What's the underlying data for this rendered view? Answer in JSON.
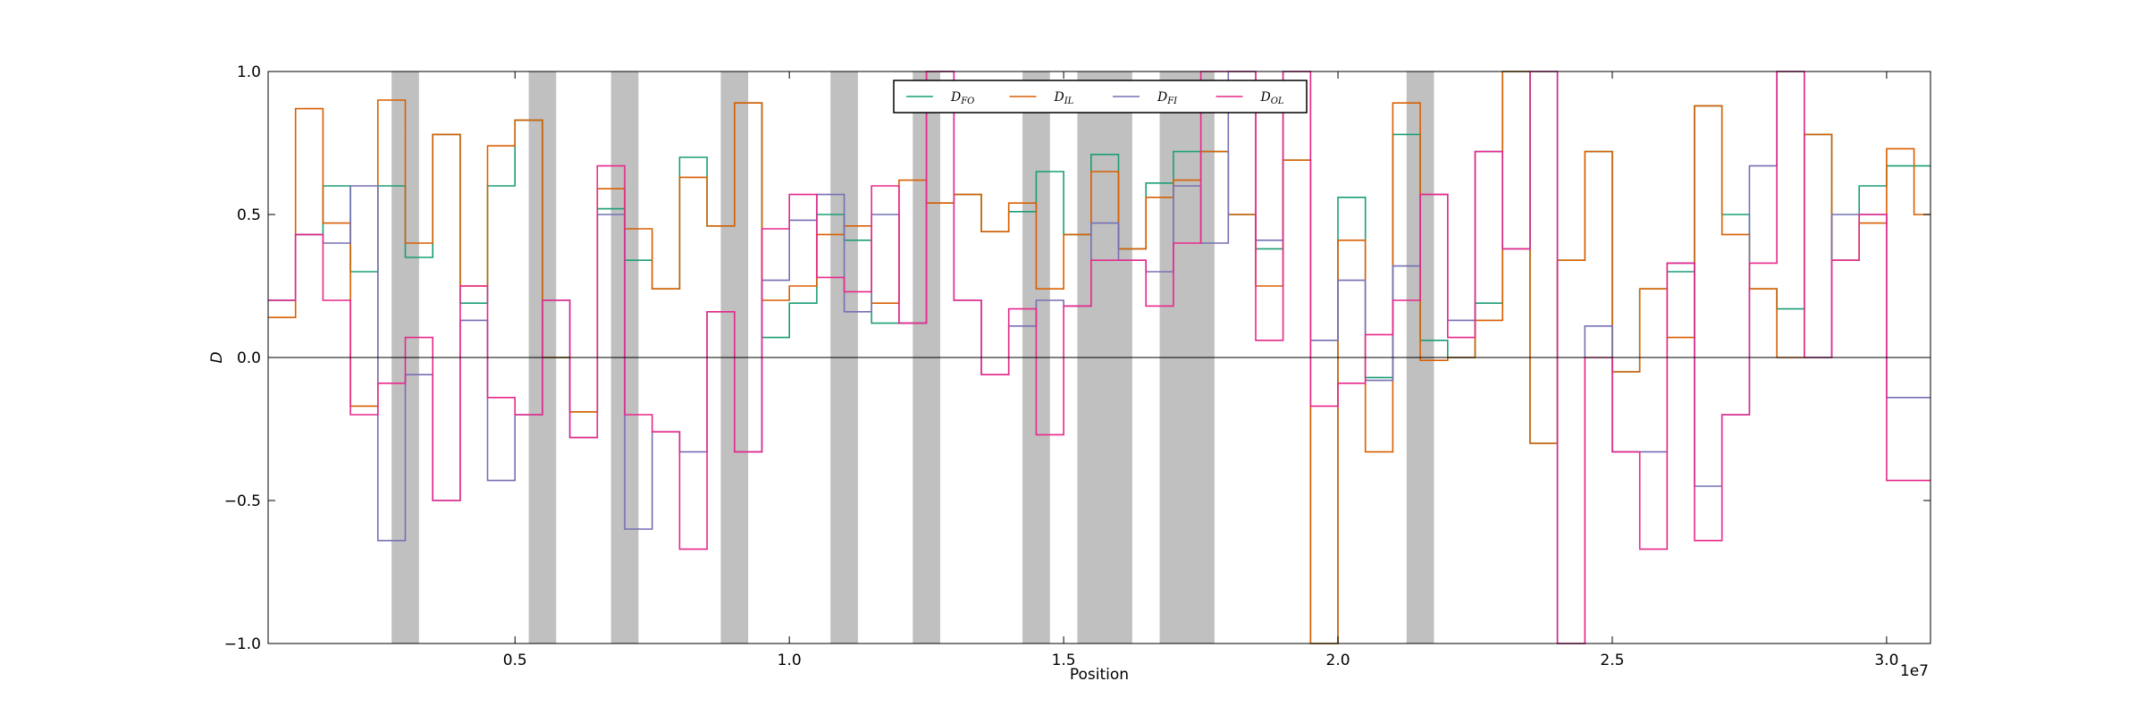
{
  "chart_data": {
    "type": "line",
    "step": true,
    "xlabel": "Position",
    "ylabel": "D",
    "x_offset_label": "1e7",
    "xlim": [
      500000,
      30800000
    ],
    "ylim": [
      -1.0,
      1.0
    ],
    "x_ticks": [
      5000000,
      10000000,
      15000000,
      20000000,
      25000000,
      30000000
    ],
    "x_tick_labels": [
      "0.5",
      "1.0",
      "1.5",
      "2.0",
      "2.5",
      "3.0"
    ],
    "y_ticks": [
      1.0,
      0.5,
      0.0,
      -0.5,
      -1.0
    ],
    "y_tick_labels": [
      "1.0",
      "0.5",
      "0.0",
      "−0.5",
      "−1.0"
    ],
    "zero_line": true,
    "grid": false,
    "legend_position": "top-center",
    "shaded_regions": [
      [
        2750000,
        3250000
      ],
      [
        5250000,
        5750000
      ],
      [
        6750000,
        7250000
      ],
      [
        8750000,
        9250000
      ],
      [
        10750000,
        11250000
      ],
      [
        12250000,
        12750000
      ],
      [
        14250000,
        14750000
      ],
      [
        15250000,
        16250000
      ],
      [
        16750000,
        17750000
      ],
      [
        21250000,
        21750000
      ]
    ],
    "shade_color": "#c0c0c0",
    "bin_edges": [
      500000,
      1000000,
      1500000,
      2000000,
      2500000,
      3000000,
      3500000,
      4000000,
      4500000,
      5000000,
      5500000,
      6000000,
      6500000,
      7000000,
      7500000,
      8000000,
      8500000,
      9000000,
      9500000,
      10000000,
      10500000,
      11000000,
      11500000,
      12000000,
      12500000,
      13000000,
      13500000,
      14000000,
      14500000,
      15000000,
      15500000,
      16000000,
      16500000,
      17000000,
      17500000,
      18000000,
      18500000,
      19000000,
      19500000,
      20000000,
      20500000,
      21000000,
      21500000,
      22000000,
      22500000,
      23000000,
      23500000,
      24000000,
      24500000,
      25000000,
      25500000,
      26000000,
      26500000,
      27000000,
      27500000,
      28000000,
      28500000,
      29000000,
      29500000,
      30000000,
      30500000,
      30800000
    ],
    "series": [
      {
        "name": "D_FO",
        "label_main": "D",
        "label_sub": "FO",
        "color": "#1b9e77",
        "values": [
          0.2,
          0.43,
          0.6,
          0.3,
          0.6,
          0.35,
          0.78,
          0.19,
          0.6,
          0.83,
          0.0,
          -0.19,
          0.52,
          0.34,
          0.24,
          0.7,
          0.46,
          0.89,
          0.07,
          0.19,
          0.5,
          0.41,
          0.12,
          0.12,
          0.54,
          0.57,
          0.44,
          0.51,
          0.65,
          0.43,
          0.71,
          0.38,
          0.61,
          0.72,
          0.72,
          0.5,
          0.38,
          0.69,
          -1.0,
          0.56,
          -0.07,
          0.78,
          0.06,
          0.0,
          0.19,
          1.0,
          -0.3,
          0.34,
          0.72,
          -0.05,
          0.24,
          0.3,
          0.88,
          0.5,
          0.24,
          0.17,
          0.78,
          0.34,
          0.6,
          0.67,
          0.67
        ]
      },
      {
        "name": "D_IL",
        "label_main": "D",
        "label_sub": "IL",
        "color": "#d95f02",
        "values": [
          0.14,
          0.87,
          0.47,
          -0.17,
          0.9,
          0.4,
          0.78,
          0.25,
          0.74,
          0.83,
          0.0,
          -0.19,
          0.59,
          0.45,
          0.24,
          0.63,
          0.46,
          0.89,
          0.2,
          0.25,
          0.43,
          0.46,
          0.19,
          0.62,
          0.54,
          0.57,
          0.44,
          0.54,
          0.24,
          0.43,
          0.65,
          0.38,
          0.56,
          0.62,
          0.72,
          0.5,
          0.25,
          0.69,
          -1.0,
          0.41,
          -0.33,
          0.89,
          -0.01,
          0.0,
          0.13,
          1.0,
          -0.3,
          0.34,
          0.72,
          -0.05,
          0.24,
          0.07,
          0.88,
          0.43,
          0.24,
          0.0,
          0.78,
          0.34,
          0.47,
          0.73,
          0.5
        ]
      },
      {
        "name": "D_FI",
        "label_main": "D",
        "label_sub": "FI",
        "color": "#7570b3",
        "values": [
          0.2,
          0.43,
          0.4,
          0.6,
          -0.64,
          -0.06,
          -0.5,
          0.13,
          -0.43,
          -0.2,
          0.2,
          -0.28,
          0.5,
          -0.6,
          -0.26,
          -0.33,
          0.16,
          -0.33,
          0.27,
          0.48,
          0.57,
          0.16,
          0.5,
          0.12,
          1.0,
          0.2,
          -0.06,
          0.11,
          0.2,
          0.18,
          0.47,
          0.34,
          0.3,
          0.6,
          0.4,
          1.0,
          0.41,
          1.0,
          0.06,
          0.27,
          -0.08,
          0.32,
          0.57,
          0.13,
          0.72,
          0.38,
          1.0,
          -1.0,
          0.11,
          -0.33,
          -0.33,
          0.33,
          -0.45,
          -0.2,
          0.67,
          1.0,
          0.0,
          0.5,
          0.5,
          -0.14,
          -0.14
        ]
      },
      {
        "name": "D_OL",
        "label_main": "D",
        "label_sub": "OL",
        "color": "#e7298a",
        "values": [
          0.2,
          0.43,
          0.2,
          -0.2,
          -0.09,
          0.07,
          -0.5,
          0.25,
          -0.14,
          -0.2,
          0.2,
          -0.28,
          0.67,
          -0.2,
          -0.26,
          -0.67,
          0.16,
          -0.33,
          0.45,
          0.57,
          0.28,
          0.23,
          0.6,
          0.12,
          1.0,
          0.2,
          -0.06,
          0.17,
          -0.27,
          0.18,
          0.34,
          0.34,
          0.18,
          0.4,
          1.0,
          1.0,
          0.06,
          1.0,
          -0.17,
          -0.09,
          0.08,
          0.2,
          0.57,
          0.07,
          0.72,
          0.38,
          1.0,
          -1.0,
          0.0,
          -0.33,
          -0.67,
          0.33,
          -0.64,
          -0.2,
          0.33,
          1.0,
          0.0,
          0.34,
          0.5,
          -0.43,
          -0.43
        ]
      }
    ]
  }
}
